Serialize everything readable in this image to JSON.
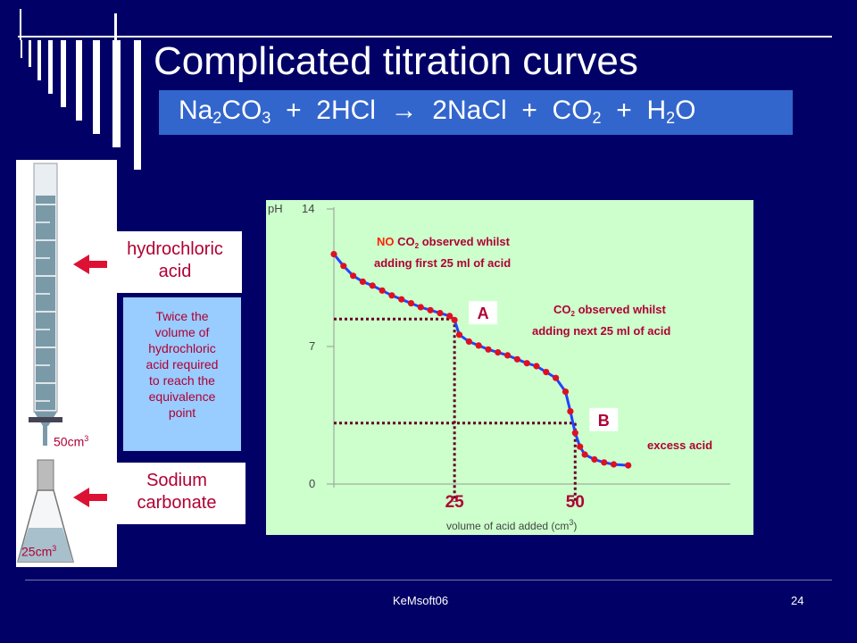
{
  "slide": {
    "title": "Complicated titration curves",
    "footer": "KeMsoft06",
    "page_number": "24"
  },
  "equation": {
    "reactant1": "Na",
    "reactant1_sub1": "2",
    "reactant1_b": "CO",
    "reactant1_sub2": "3",
    "plus1": "+",
    "reactant2": "2HCl",
    "arrow": "→",
    "product1": "2NaCl",
    "plus2": "+",
    "product2": "CO",
    "product2_sub": "2",
    "plus3": "+",
    "product3_a": "H",
    "product3_sub": "2",
    "product3_b": "O"
  },
  "apparatus": {
    "burette_volume_label": "50cm",
    "flask_volume_label": "25cm",
    "unit_superscript": "3"
  },
  "labels": {
    "hcl_line1": "hydrochloric",
    "hcl_line2": "acid",
    "na2co3_line1": "Sodium",
    "na2co3_line2": "carbonate",
    "note_line1": "Twice the",
    "note_line2": "volume of",
    "note_line3": "hydrochloric",
    "note_line4": "acid required",
    "note_line5": "to reach the",
    "note_line6": "equivalence",
    "note_line7": "point"
  },
  "colors": {
    "background": "#000066",
    "title_box": "#3366cc",
    "label_red": "#b00033",
    "note_bg": "#99ccff",
    "chart_bg": "#ccffcc",
    "curve_blue": "#2244ff",
    "point_red": "#dd1122",
    "marker_dotted": "#660022"
  },
  "chart_data": {
    "type": "line",
    "ylabel": "pH",
    "xlabel": "volume of acid added (cm",
    "xlabel_sup": "3",
    "xlabel_close": ")",
    "yticks": [
      "0",
      "7",
      "14"
    ],
    "ylim": [
      0,
      14
    ],
    "xlim": [
      0,
      74
    ],
    "marked_x": [
      "25",
      "50"
    ],
    "series": [
      {
        "values": [
          [
            0,
            11.7
          ],
          [
            2,
            11.1
          ],
          [
            4,
            10.6
          ],
          [
            6,
            10.3
          ],
          [
            8,
            10.1
          ],
          [
            10,
            9.85
          ],
          [
            12,
            9.6
          ],
          [
            14,
            9.4
          ],
          [
            16,
            9.2
          ],
          [
            18,
            9.0
          ],
          [
            20,
            8.85
          ],
          [
            22,
            8.7
          ],
          [
            24,
            8.55
          ],
          [
            25,
            8.35
          ],
          [
            26,
            7.6
          ],
          [
            28,
            7.25
          ],
          [
            30,
            7.05
          ],
          [
            32,
            6.85
          ],
          [
            34,
            6.7
          ],
          [
            36,
            6.55
          ],
          [
            38,
            6.35
          ],
          [
            40,
            6.15
          ],
          [
            42,
            6.0
          ],
          [
            44,
            5.7
          ],
          [
            46,
            5.4
          ],
          [
            48,
            4.7
          ],
          [
            49,
            3.7
          ],
          [
            50,
            2.6
          ],
          [
            51,
            1.9
          ],
          [
            52,
            1.5
          ],
          [
            54,
            1.25
          ],
          [
            56,
            1.1
          ],
          [
            58,
            1.0
          ],
          [
            61,
            0.95
          ]
        ]
      }
    ],
    "points_A": {
      "label": "A",
      "x": 25,
      "y": 8.4
    },
    "points_B": {
      "label": "B",
      "x": 50,
      "y": 3.1
    },
    "annotations": {
      "top_no": "NO",
      "top_co2": "CO",
      "top_sub": "2",
      "top_rest": "observed whilst",
      "top_line2": "adding first 25 ml of acid",
      "mid_co2": "CO",
      "mid_sub": "2",
      "mid_rest": "observed whilst",
      "mid_line2": "adding next 25 ml of acid",
      "bottom": "excess acid"
    }
  }
}
